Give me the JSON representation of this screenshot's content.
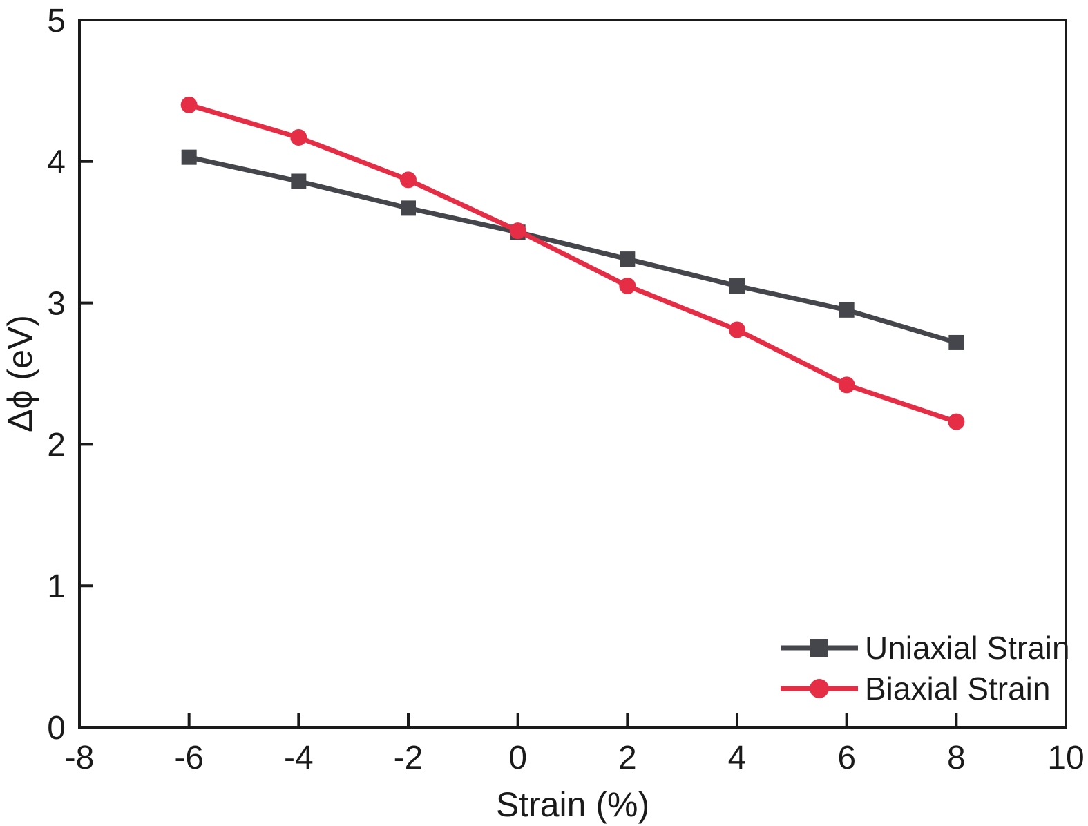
{
  "chart_data": {
    "type": "line",
    "title": "",
    "xlabel": "Strain (%)",
    "ylabel": "Δϕ (eV)",
    "xlim": [
      -8,
      10
    ],
    "ylim": [
      0,
      5
    ],
    "xticks": [
      -8,
      -6,
      -4,
      -2,
      0,
      2,
      4,
      6,
      8,
      10
    ],
    "yticks": [
      0,
      1,
      2,
      3,
      4,
      5
    ],
    "grid": false,
    "axis_color": "#1a1a1a",
    "legend_position": "lower right",
    "x": [
      -6,
      -4,
      -2,
      0,
      2,
      4,
      6,
      8
    ],
    "series": [
      {
        "name": "Uniaxial Strain",
        "marker": "square",
        "color": "#45464c",
        "values": [
          4.03,
          3.86,
          3.67,
          3.5,
          3.31,
          3.12,
          2.95,
          2.72
        ]
      },
      {
        "name": "Biaxial Strain",
        "marker": "circle",
        "color": "#e62d46",
        "values": [
          4.4,
          4.17,
          3.87,
          3.51,
          3.12,
          2.81,
          2.42,
          2.16
        ]
      }
    ]
  }
}
